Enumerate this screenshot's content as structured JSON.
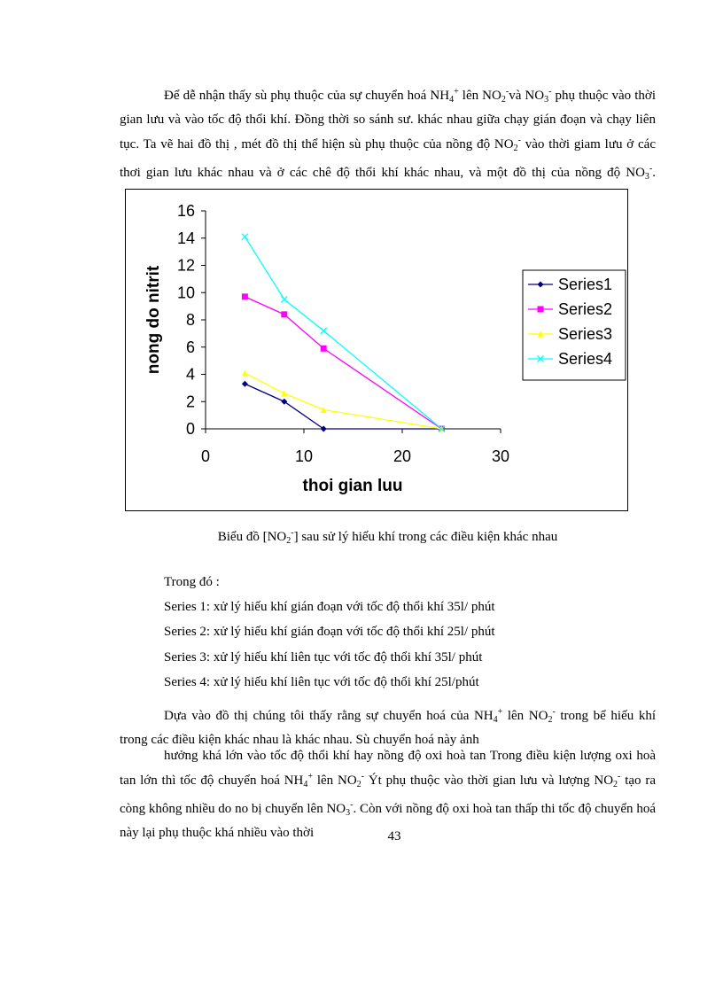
{
  "paragraph_1": [
    "Để dễ nhận thấy sù phụ thuộc của sự chuyển hoá NH",
    "4",
    "+",
    " lên NO",
    "2",
    "-",
    "và NO",
    "3",
    "-",
    " phụ thuộc vào thời gian lưu và vào tốc độ thổi khí. Đồng thời so sánh sư. khác nhau giữa chạy gián đoạn và chạy liên tục. Ta vẽ hai đồ thị , mét đồ thị thể hiện sù phụ thuộc của nồng độ NO",
    "2",
    "-",
    " vào thời giam lưu ở các thơi gian lưu khác nhau và ở các chê độ thổi khí khác nhau, và một đồ thị của nồng độ NO",
    "3",
    "-",
    "."
  ],
  "chart_data": {
    "type": "line",
    "x": [
      4,
      8,
      12,
      24
    ],
    "series": [
      {
        "name": "Series1",
        "color": "#000080",
        "marker": "diamond",
        "values": [
          3.3,
          2.0,
          0,
          0
        ]
      },
      {
        "name": "Series2",
        "color": "#ff00ff",
        "marker": "square",
        "values": [
          9.7,
          8.4,
          5.9,
          0
        ]
      },
      {
        "name": "Series3",
        "color": "#ffff00",
        "marker": "triangle",
        "values": [
          4.1,
          2.6,
          1.4,
          0
        ]
      },
      {
        "name": "Series4",
        "color": "#00ffff",
        "marker": "x",
        "values": [
          14.1,
          9.5,
          7.2,
          0
        ]
      }
    ],
    "xlabel": "thoi gian luu",
    "ylabel": "nong do nitrit",
    "xlim": [
      0,
      30
    ],
    "xticks": [
      0,
      10,
      20,
      30
    ],
    "ylim": [
      0,
      16
    ],
    "yticks": [
      0,
      2,
      4,
      6,
      8,
      10,
      12,
      14,
      16
    ],
    "grid": false,
    "legend": "right"
  },
  "caption": [
    "Biểu đồ [NO",
    "2",
    "-",
    "] sau sử lý hiếu khí trong các điều kiện khác nhau"
  ],
  "legend_intro": "Trong đó :",
  "series_notes": [
    "Series 1: xử lý hiếu khí gián đoạn với tốc độ thổi khí 35l/ phút",
    "Series 2: xử lý hiếu khí gián đoạn với tốc độ thổi khí 25l/ phút",
    "Series 3: xử lý hiếu khí liên tục với tốc độ thổi khí 35l/ phút",
    "Series 4: xử lý hiếu khí liên tục với tốc độ thổi khí 25l/phút"
  ],
  "paragraph_2": [
    "Dựa vào đồ thị chúng tôi thấy rằng sự chuyển hoá của NH",
    "4",
    "+",
    " lên NO",
    "2",
    "-",
    " trong bể hiếu khí trong các điều kiện khác nhau là khác nhau. Sù chuyển hoá này  ảnh"
  ],
  "paragraph_3": [
    "hưởng khá lớn vào tốc độ thổi khí hay nồng độ oxi hoà tan Trong điều kiện lượng oxi hoà tan lớn thì tốc độ chuyển hoá  NH",
    "4",
    "+",
    " lên NO",
    "2",
    "-",
    " Ýt phụ thuộc vào thời gian lưu và lượng NO",
    "2",
    "-",
    " tạo ra còng không nhiều do no bị chuyển lên NO",
    "3",
    "-",
    ". Còn với nồng độ oxi hoà tan thấp thi tốc độ chuyển hoá này lại phụ thuộc khá nhiều vào thời"
  ],
  "page_number": "43"
}
